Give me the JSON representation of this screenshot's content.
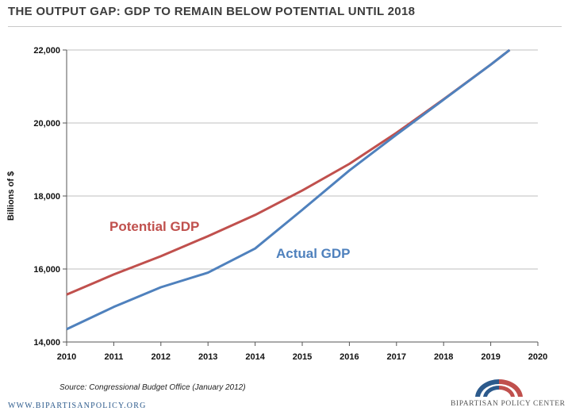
{
  "title": "THE OUTPUT GAP: GDP TO REMAIN BELOW POTENTIAL UNTIL 2018",
  "source": "Source: Congressional Budget Office (January 2012)",
  "website": "WWW.BIPARTISANPOLICY.ORG",
  "logo_text": "BIPARTISAN POLICY CENTER",
  "colors": {
    "potential": "#c0504d",
    "actual": "#4f81bd",
    "logo_blue": "#2c5a8c",
    "logo_red": "#c0504d"
  },
  "chart_data": {
    "type": "line",
    "title": "THE OUTPUT GAP: GDP TO REMAIN BELOW POTENTIAL UNTIL 2018",
    "xlabel": "",
    "ylabel": "Billions of $",
    "xlim": [
      2010,
      2020
    ],
    "ylim": [
      14000,
      22000
    ],
    "x_ticks": [
      "2010",
      "2011",
      "2012",
      "2013",
      "2014",
      "2015",
      "2016",
      "2017",
      "2018",
      "2019",
      "2020"
    ],
    "y_ticks": [
      "14,000",
      "16,000",
      "18,000",
      "20,000",
      "22,000"
    ],
    "grid": true,
    "series": [
      {
        "name": "Potential GDP",
        "color": "#c0504d",
        "x": [
          2010,
          2011,
          2012,
          2013,
          2014,
          2015,
          2016,
          2017,
          2018,
          2019,
          2019.4
        ],
        "y": [
          15300,
          15850,
          16350,
          16900,
          17480,
          18150,
          18880,
          19730,
          20650,
          21600,
          22000
        ]
      },
      {
        "name": "Actual GDP",
        "color": "#4f81bd",
        "x": [
          2010,
          2011,
          2012,
          2013,
          2014,
          2015,
          2016,
          2017,
          2018,
          2019,
          2019.4
        ],
        "y": [
          14350,
          14960,
          15500,
          15900,
          16560,
          17620,
          18700,
          19680,
          20640,
          21600,
          22000
        ]
      }
    ]
  }
}
